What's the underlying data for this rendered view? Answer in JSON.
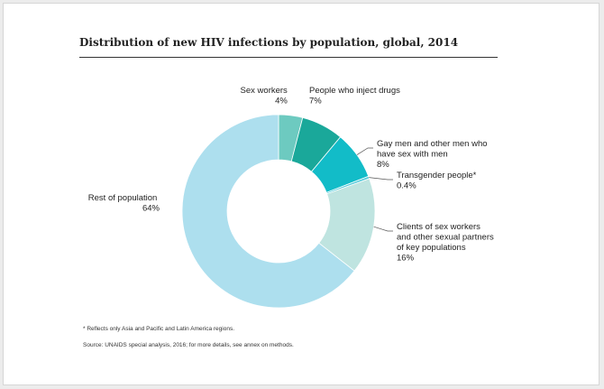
{
  "chart_data": {
    "type": "pie",
    "title": "Distribution of new HIV infections by population, global, 2014",
    "donut": true,
    "slices": [
      {
        "label": "Sex workers",
        "value": 4,
        "value_label": "4%",
        "color": "#6dcac0"
      },
      {
        "label": "People who inject drugs",
        "value": 7,
        "value_label": "7%",
        "color": "#1aa89a"
      },
      {
        "label": "Gay men and other men who have sex with men",
        "value": 8,
        "value_label": "8%",
        "color": "#12bcc8"
      },
      {
        "label": "Transgender people*",
        "value": 0.4,
        "value_label": "0.4%",
        "color": "#53c9d9"
      },
      {
        "label": "Clients of sex workers and other sexual partners of key populations",
        "value": 16,
        "value_label": "16%",
        "color": "#bfe4e0"
      },
      {
        "label": "Rest of population",
        "value": 64,
        "value_label": "64%",
        "color": "#addfee"
      }
    ],
    "label_lines": {
      "sex_workers": [
        "Sex workers"
      ],
      "pwid": [
        "People who inject drugs"
      ],
      "msm": [
        "Gay men and other men who",
        "have sex with men"
      ],
      "transgender": [
        "Transgender people*"
      ],
      "clients": [
        "Clients of sex workers",
        "and other sexual partners",
        "of key populations"
      ],
      "rest": [
        "Rest of population"
      ]
    }
  },
  "notes": {
    "footnote": "* Reflects only Asia and Pacific and Latin America regions.",
    "source": "Source: UNAIDS special analysis, 2016; for more details, see annex on methods."
  }
}
